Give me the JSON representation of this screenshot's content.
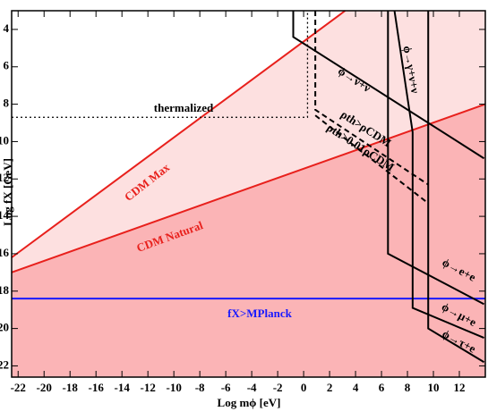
{
  "chart_data": {
    "type": "line",
    "x_label": "Log mϕ [eV]",
    "y_label": "Log fX [GeV]",
    "xlim": [
      -22.5,
      14
    ],
    "ylim": [
      22.6,
      3
    ],
    "xticks": [
      -22,
      -20,
      -18,
      -16,
      -14,
      -12,
      -10,
      -8,
      -6,
      -4,
      -2,
      0,
      2,
      4,
      6,
      8,
      10,
      12
    ],
    "yticks": [
      4,
      6,
      8,
      10,
      12,
      14,
      16,
      18,
      20,
      22
    ],
    "series": [
      {
        "color": "#e8201c",
        "x": [
          -22.5,
          3.2
        ],
        "values": [
          16.2,
          3
        ]
      },
      {
        "color": "#e8201c",
        "x": [
          -22.5,
          14
        ],
        "values": [
          17,
          8
        ]
      },
      {
        "color": "#1a1aff",
        "x": [
          -22.5,
          14
        ],
        "values": [
          18.4,
          18.4
        ]
      },
      {
        "color": "#000000",
        "dash": "2,3",
        "x": [
          -22.5,
          0.3,
          0.3
        ],
        "values": [
          8.7,
          8.7,
          3
        ]
      },
      {
        "color": "#000000",
        "x": [
          -0.8,
          -0.8,
          13.9
        ],
        "values": [
          3,
          4.4,
          10.9
        ]
      },
      {
        "color": "#000000",
        "dash": "6,4",
        "x": [
          0.9,
          0.9,
          9.6
        ],
        "values": [
          3,
          8.3,
          12.3
        ]
      },
      {
        "color": "#000000",
        "dash": "6,4",
        "x": [
          0.9,
          9.6
        ],
        "values": [
          8.6,
          13.3
        ]
      },
      {
        "color": "#000000",
        "x": [
          6.5,
          6.5,
          13.9
        ],
        "values": [
          3,
          16.0,
          18.7
        ]
      },
      {
        "color": "#000000",
        "x": [
          7.0,
          8.4,
          8.4,
          13.9
        ],
        "values": [
          3,
          9.5,
          18.9,
          20.5
        ]
      },
      {
        "color": "#000000",
        "x": [
          9.6,
          9.6,
          13.9
        ],
        "values": [
          3,
          20.0,
          21.8
        ]
      }
    ],
    "annotations": [
      "thermalized",
      "CDM Max",
      "CDM Natural",
      "fX>MPlanck",
      "ϕ→ν+ν",
      "ϕ→γ+ν+ν",
      "ρth>ρCDM",
      "ρth>0.01ρCDM",
      "ϕ→e+e",
      "ϕ→μ+e",
      "ϕ→τ+e"
    ]
  }
}
